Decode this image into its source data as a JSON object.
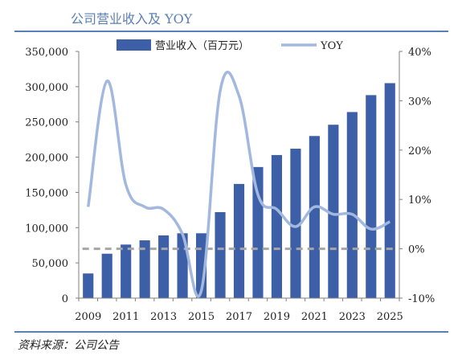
{
  "header": {
    "title": "公司营业收入及 YOY"
  },
  "footer": {
    "source": "资料来源：公司公告"
  },
  "chart_data": {
    "type": "bar",
    "x": [
      "2009",
      "2010",
      "2011",
      "2012",
      "2013",
      "2014",
      "2015",
      "2016",
      "2017",
      "2018",
      "2019",
      "2020",
      "2021",
      "2022",
      "2023",
      "2024",
      "2025"
    ],
    "x_tick_labels": [
      "2009",
      "2011",
      "2013",
      "2015",
      "2017",
      "2019",
      "2021",
      "2023",
      "2025"
    ],
    "series": [
      {
        "name": "营业收入（百万元）",
        "type": "bar",
        "axis": "left",
        "values": [
          35000,
          63000,
          76000,
          82000,
          89000,
          92000,
          92000,
          122000,
          162000,
          186000,
          203000,
          212000,
          230000,
          246000,
          264000,
          288000,
          305000
        ]
      },
      {
        "name": "YOY",
        "type": "line",
        "axis": "right",
        "values": [
          0.085,
          0.34,
          0.13,
          0.085,
          0.08,
          0.03,
          -0.085,
          0.32,
          0.31,
          0.11,
          0.08,
          0.045,
          0.085,
          0.07,
          0.07,
          0.04,
          0.055
        ]
      }
    ],
    "y_left": {
      "ylim": [
        0,
        350000
      ],
      "ticks": [
        0,
        50000,
        100000,
        150000,
        200000,
        250000,
        300000,
        350000
      ],
      "tick_labels": [
        "0",
        "50,000",
        "100,000",
        "150,000",
        "200,000",
        "250,000",
        "300,000",
        "350,000"
      ]
    },
    "y_right": {
      "ylim": [
        -0.1,
        0.4
      ],
      "ticks": [
        -0.1,
        0.0,
        0.1,
        0.2,
        0.3,
        0.4
      ],
      "tick_labels": [
        "-10%",
        "0%",
        "10%",
        "20%",
        "30%",
        "40%"
      ]
    },
    "zero_line": {
      "axis": "right",
      "value": 0.0
    },
    "legend": {
      "placement": "top",
      "entries": [
        "营业收入（百万元）",
        "YOY"
      ]
    },
    "grid": false,
    "colors": {
      "bar": "#3c5fa8",
      "line": "#a3b8de",
      "zero_line": "#a6a6a6",
      "frame": "#7f7f7f"
    }
  }
}
